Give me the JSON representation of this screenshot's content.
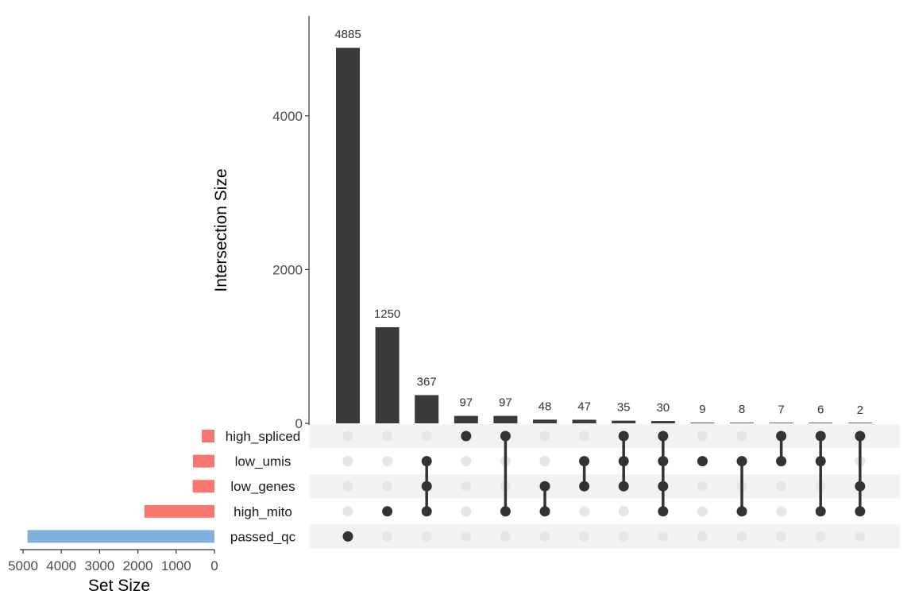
{
  "chart_data": {
    "type": "upset",
    "intersection_axis": {
      "label": "Intersection Size",
      "ticks": [
        0,
        2000,
        4000
      ],
      "tick_labels": [
        "0",
        "2000",
        "4000"
      ],
      "ylim": [
        0,
        5300
      ]
    },
    "set_size_axis": {
      "label": "Set Size",
      "ticks": [
        5000,
        4000,
        3000,
        2000,
        1000,
        0
      ],
      "tick_labels": [
        "5000",
        "4000",
        "3000",
        "2000",
        "1000",
        "0"
      ],
      "xlim": [
        0,
        5000
      ],
      "reversed": true
    },
    "sets": [
      {
        "name": "high_spliced",
        "size": 330,
        "color": "#f8766d"
      },
      {
        "name": "low_umis",
        "size": 560,
        "color": "#f8766d"
      },
      {
        "name": "low_genes",
        "size": 570,
        "color": "#f8766d"
      },
      {
        "name": "high_mito",
        "size": 1830,
        "color": "#f8766d"
      },
      {
        "name": "passed_qc",
        "size": 4885,
        "color": "#7fb1df"
      }
    ],
    "intersections": [
      {
        "size": 4885,
        "label": "4885",
        "sets": [
          "passed_qc"
        ]
      },
      {
        "size": 1250,
        "label": "1250",
        "sets": [
          "high_mito"
        ]
      },
      {
        "size": 367,
        "label": "367",
        "sets": [
          "low_umis",
          "low_genes",
          "high_mito"
        ]
      },
      {
        "size": 97,
        "label": "97",
        "sets": [
          "high_spliced"
        ]
      },
      {
        "size": 97,
        "label": "97",
        "sets": [
          "high_spliced",
          "high_mito"
        ]
      },
      {
        "size": 48,
        "label": "48",
        "sets": [
          "low_genes",
          "high_mito"
        ]
      },
      {
        "size": 47,
        "label": "47",
        "sets": [
          "low_umis",
          "low_genes"
        ]
      },
      {
        "size": 35,
        "label": "35",
        "sets": [
          "high_spliced",
          "low_umis",
          "low_genes"
        ]
      },
      {
        "size": 30,
        "label": "30",
        "sets": [
          "high_spliced",
          "low_umis",
          "low_genes",
          "high_mito"
        ]
      },
      {
        "size": 9,
        "label": "9",
        "sets": [
          "low_umis"
        ]
      },
      {
        "size": 8,
        "label": "8",
        "sets": [
          "low_umis",
          "high_mito"
        ]
      },
      {
        "size": 7,
        "label": "7",
        "sets": [
          "high_spliced",
          "low_umis"
        ]
      },
      {
        "size": 6,
        "label": "6",
        "sets": [
          "high_spliced",
          "low_umis",
          "high_mito"
        ]
      },
      {
        "size": 2,
        "label": "2",
        "sets": [
          "high_spliced",
          "low_genes",
          "high_mito"
        ]
      }
    ],
    "colors": {
      "bar": "#3a3a3a",
      "dot_active": "#333333",
      "dot_inactive": "#e6e6e6",
      "stripe": "#f2f2f2",
      "axis": "#333333"
    }
  }
}
